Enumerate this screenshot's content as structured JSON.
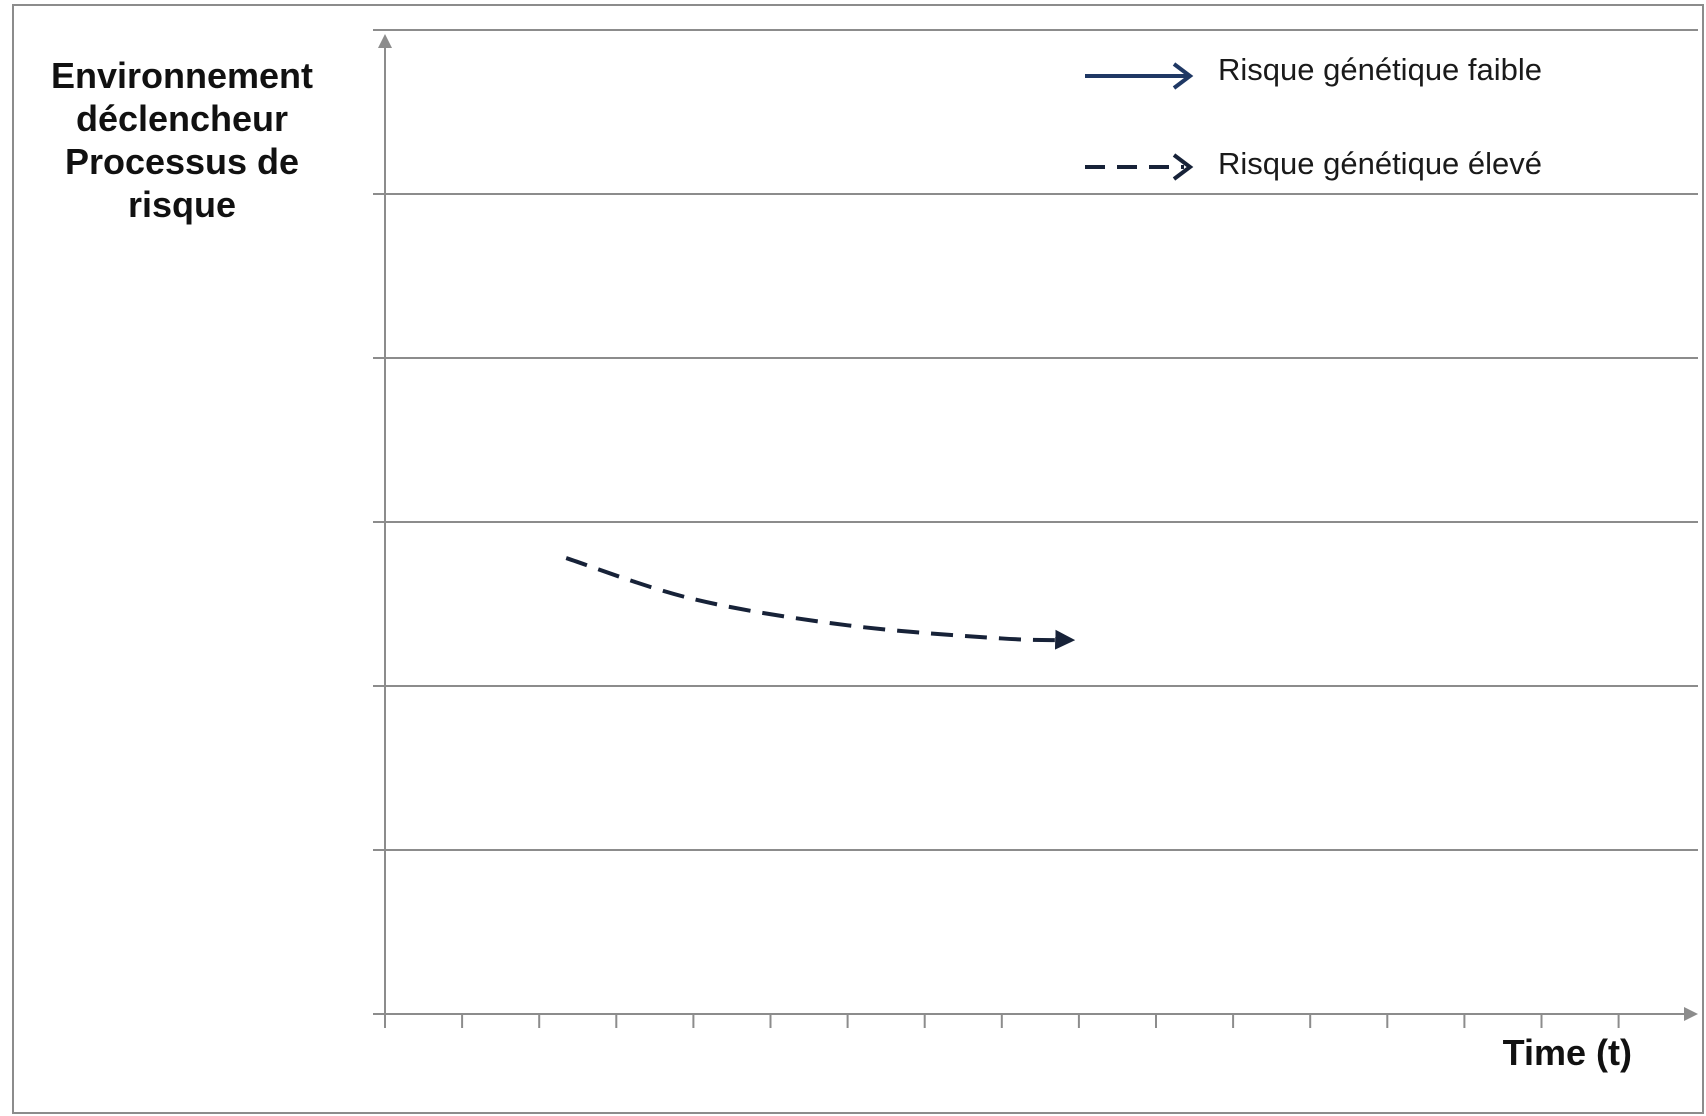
{
  "chart_data": {
    "type": "line",
    "title": "",
    "ylabel_lines": [
      "Environnement",
      "déclencheur",
      "Processus de",
      "risque"
    ],
    "xlabel": "Time (t)",
    "grid": true,
    "legend_position": "top-right",
    "ylim": [
      0,
      6
    ],
    "xlim": [
      0,
      17
    ],
    "x_tick_count": 17,
    "colors": {
      "axis": "#8c8c8c",
      "grid": "#8c8c8c",
      "low": "#1f3864",
      "high": "#172238"
    },
    "legend": [
      {
        "label": "Risque génétique faible",
        "style": "solid"
      },
      {
        "label": "Risque génétique élevé",
        "style": "dashed"
      }
    ],
    "series": [
      {
        "name": "Risque génétique faible",
        "style": "solid",
        "x": [],
        "y": []
      },
      {
        "name": "Risque génétique élevé",
        "style": "dashed",
        "x": [
          2.35,
          4.0,
          6.0,
          8.0,
          8.9
        ],
        "y": [
          2.78,
          2.53,
          2.37,
          2.29,
          2.28
        ]
      }
    ]
  }
}
